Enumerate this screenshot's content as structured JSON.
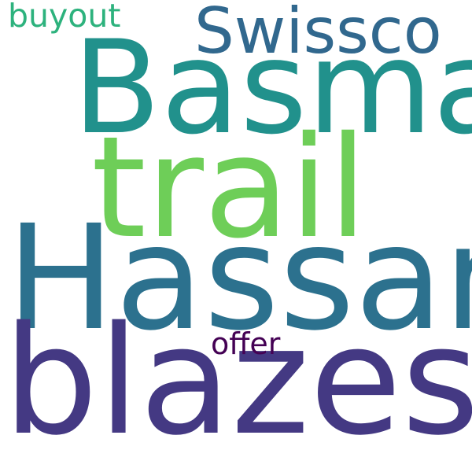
{
  "background": "#ffffff",
  "words": {
    "buyout": {
      "text": "buyout",
      "color": "#2db27d"
    },
    "swissco": {
      "text": "Swissco",
      "color": "#31688e"
    },
    "basma": {
      "text": "Basma",
      "color": "#21918c"
    },
    "trail": {
      "text": "trail",
      "color": "#6ece58"
    },
    "hassan": {
      "text": "Hassan",
      "color": "#2c718e"
    },
    "offer": {
      "text": "offer",
      "color": "#440154"
    },
    "blazes": {
      "text": "blazes",
      "color": "#443983"
    }
  }
}
